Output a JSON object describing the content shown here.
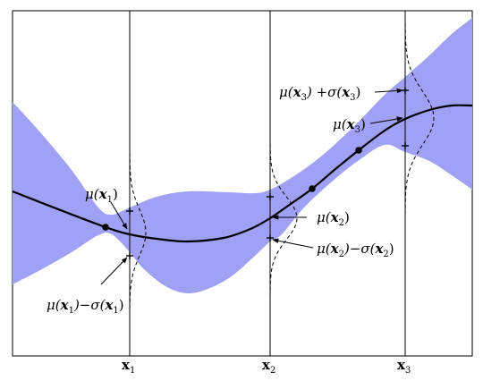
{
  "diagram": {
    "band_color": "#a0a0f5",
    "curve_color": "#000000",
    "x_ticks": [
      {
        "base": "x",
        "sub": "1"
      },
      {
        "base": "x",
        "sub": "2"
      },
      {
        "base": "x",
        "sub": "3"
      }
    ],
    "annotations": {
      "mu_x1": {
        "pre": "μ(",
        "var": "x",
        "sub": "1",
        "post": ")"
      },
      "mu_minus_sigma_x1": {
        "pre": "μ(",
        "var": "x",
        "sub": "1",
        "mid": ")−σ(",
        "var2": "x",
        "sub2": "1",
        "post": ")"
      },
      "mu_x2": {
        "pre": "μ(",
        "var": "x",
        "sub": "2",
        "post": ")"
      },
      "mu_minus_sigma_x2": {
        "pre": "μ(",
        "var": "x",
        "sub": "2",
        "mid": ")−σ(",
        "var2": "x",
        "sub2": "2",
        "post": ")"
      },
      "mu_x3": {
        "pre": "μ(",
        "var": "x",
        "sub": "3",
        "post": ")"
      },
      "mu_plus_sigma_x3": {
        "pre": "μ(",
        "var": "x",
        "sub": "3",
        "mid": ") +σ(",
        "var2": "x",
        "sub2": "3",
        "post": ")"
      }
    }
  }
}
